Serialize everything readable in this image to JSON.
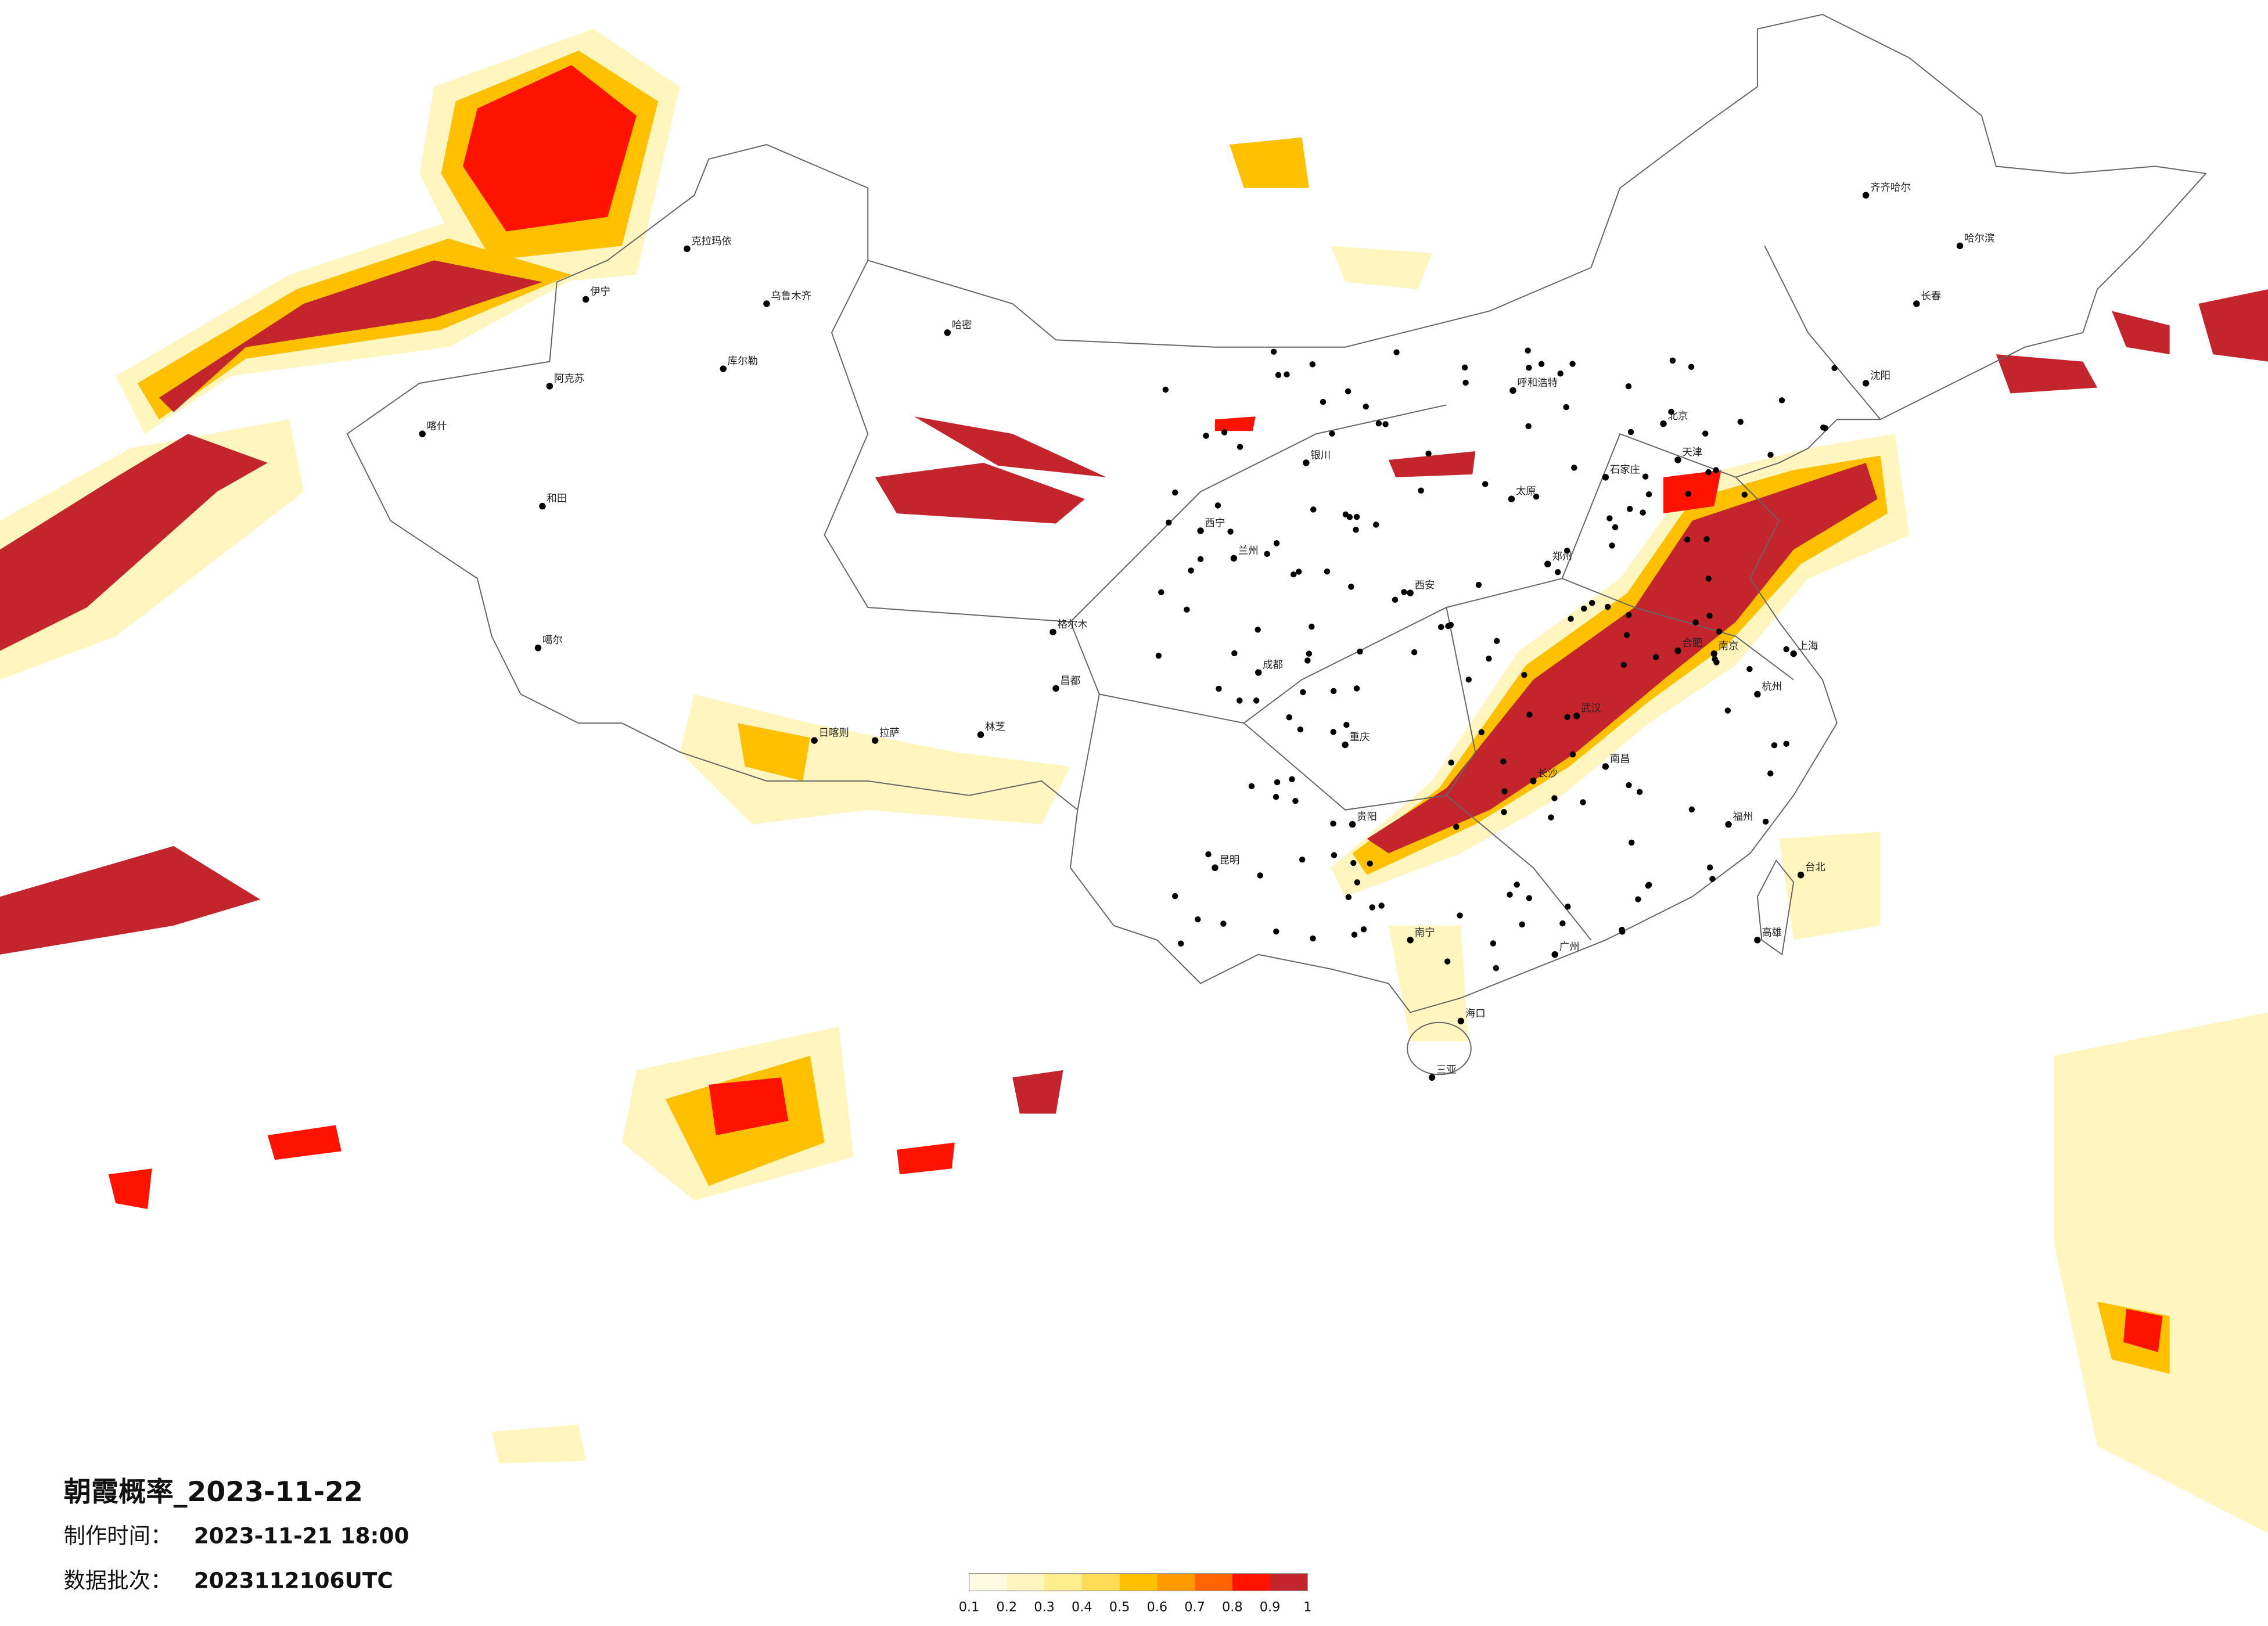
{
  "title": "朝霞概率_2023-11-22",
  "made_time": {
    "label": "制作时间：",
    "value": "2023-11-21 18:00"
  },
  "batch": {
    "label": "数据批次：",
    "value": "2023112106UTC"
  },
  "legend": {
    "ticks": [
      0.1,
      0.2,
      0.3,
      0.4,
      0.5,
      0.6,
      0.7,
      0.8,
      0.9,
      1
    ],
    "colors": [
      "#fffbe3",
      "#fff6bf",
      "#ffee8c",
      "#ffdc55",
      "#ffc000",
      "#ff9a00",
      "#ff6400",
      "#ff1200",
      "#c4242c"
    ]
  },
  "cities": [
    "伊宁",
    "乌鲁木齐",
    "喀什",
    "和田",
    "克拉玛依",
    "哈密",
    "库尔勒",
    "阿克苏",
    "噶尔",
    "日喀则",
    "拉萨",
    "林芝",
    "昌都",
    "格尔木",
    "西宁",
    "兰州",
    "银川",
    "呼和浩特",
    "北京",
    "天津",
    "石家庄",
    "太原",
    "西安",
    "郑州",
    "武汉",
    "长沙",
    "南昌",
    "合肥",
    "南京",
    "上海",
    "杭州",
    "福州",
    "广州",
    "南宁",
    "海口",
    "三亚",
    "贵阳",
    "昆明",
    "成都",
    "重庆",
    "哈尔滨",
    "长春",
    "沈阳",
    "齐齐哈尔",
    "台北",
    "高雄"
  ]
}
